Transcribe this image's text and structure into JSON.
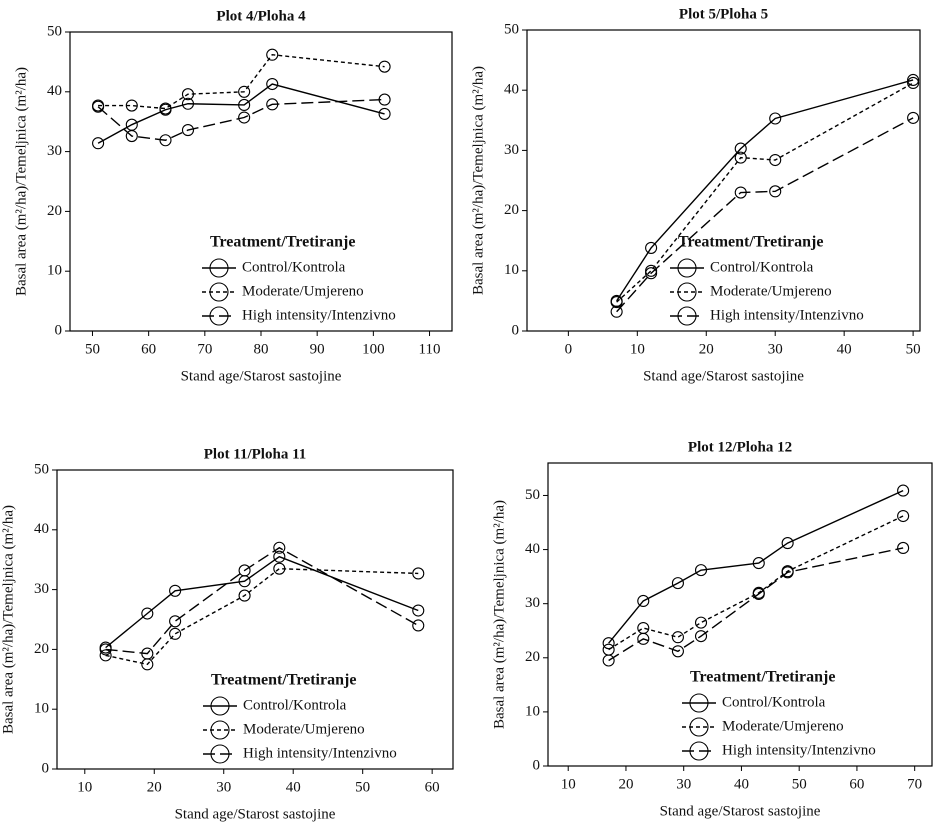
{
  "chart_data": [
    {
      "type": "line",
      "title": "Plot 4/Ploha 4",
      "xlabel": "Stand age/Starost sastojine",
      "ylabel": "Basal area (m²/ha)/Temeljnica (m²/ha)",
      "legend_title": "Treatment/Tretiranje",
      "legend": "lower right",
      "x": [
        51,
        57,
        63,
        67,
        77,
        82,
        102
      ],
      "xlim": [
        46,
        114
      ],
      "xticks": [
        50,
        60,
        70,
        80,
        90,
        100,
        110
      ],
      "ylim": [
        0,
        50
      ],
      "yticks": [
        0,
        10,
        20,
        30,
        40,
        50
      ],
      "series": [
        {
          "name": "Control/Kontrola",
          "color": "#000000",
          "linestyle": "solid",
          "values": [
            31.4,
            34.5,
            37,
            38,
            37.8,
            41.3,
            36.3
          ]
        },
        {
          "name": "Moderate/Umjereno",
          "color": "#000000",
          "linestyle": "dotted",
          "values": [
            37.7,
            37.7,
            37.2,
            39.6,
            40,
            46.2,
            44.2
          ]
        },
        {
          "name": "High intensity/Intenzivno",
          "color": "#000000",
          "linestyle": "dashed",
          "values": [
            37.5,
            32.6,
            31.9,
            33.6,
            35.7,
            37.9,
            38.7
          ]
        }
      ]
    },
    {
      "type": "line",
      "title": "Plot 5/Ploha 5",
      "xlabel": "Stand age/Starost sastojine",
      "ylabel": "Basal area (m²/ha)/Temeljnica (m²/ha)",
      "legend_title": "Treatment/Tretiranje",
      "legend": "lower right",
      "x": [
        7,
        12,
        25,
        30,
        50
      ],
      "xlim": [
        -6,
        51
      ],
      "xticks": [
        0,
        10,
        20,
        30,
        40,
        50
      ],
      "ylim": [
        0,
        50
      ],
      "yticks": [
        0,
        10,
        20,
        30,
        40,
        50
      ],
      "series": [
        {
          "name": "Control/Kontrola",
          "color": "#000000",
          "linestyle": "solid",
          "values": [
            5,
            13.8,
            30.3,
            35.3,
            41.7
          ]
        },
        {
          "name": "Moderate/Umjereno",
          "color": "#000000",
          "linestyle": "dotted",
          "values": [
            4.8,
            10,
            28.8,
            28.4,
            41.2
          ]
        },
        {
          "name": "High intensity/Intenzivno",
          "color": "#000000",
          "linestyle": "dashed",
          "values": [
            3.2,
            9.6,
            23,
            23.2,
            35.4
          ]
        }
      ]
    },
    {
      "type": "line",
      "title": "Plot 11/Ploha 11",
      "xlabel": "Stand age/Starost sastojine",
      "ylabel": "Basal area (m²/ha)/Temeljnica (m²/ha)",
      "legend_title": "Treatment/Tretiranje",
      "legend": "lower right",
      "x": [
        13,
        19,
        23,
        33,
        38,
        58
      ],
      "xlim": [
        6,
        63
      ],
      "xticks": [
        10,
        20,
        30,
        40,
        50,
        60
      ],
      "ylim": [
        0,
        50
      ],
      "yticks": [
        0,
        10,
        20,
        30,
        40,
        50
      ],
      "series": [
        {
          "name": "Control/Kontrola",
          "color": "#000000",
          "linestyle": "solid",
          "values": [
            20.3,
            26,
            29.8,
            31.4,
            35.5,
            26.5
          ]
        },
        {
          "name": "Moderate/Umjereno",
          "color": "#000000",
          "linestyle": "dotted",
          "values": [
            19,
            17.5,
            22.6,
            29,
            33.5,
            32.7
          ]
        },
        {
          "name": "High intensity/Intenzivno",
          "color": "#000000",
          "linestyle": "dashed",
          "values": [
            20,
            19.3,
            24.7,
            33.2,
            37,
            24
          ]
        }
      ]
    },
    {
      "type": "line",
      "title": "Plot 12/Ploha 12",
      "xlabel": "Stand age/Starost sastojine",
      "ylabel": "Basal area (m²/ha)/Temeljnica (m²/ha)",
      "legend_title": "Treatment/Tretiranje",
      "legend": "lower right",
      "x": [
        17,
        23,
        29,
        33,
        43,
        48,
        68
      ],
      "xlim": [
        6.5,
        73
      ],
      "xticks": [
        10,
        20,
        30,
        40,
        50,
        60,
        70
      ],
      "ylim": [
        0,
        56
      ],
      "yticks": [
        0,
        10,
        20,
        30,
        40,
        50
      ],
      "series": [
        {
          "name": "Control/Kontrola",
          "color": "#000000",
          "linestyle": "solid",
          "values": [
            22.7,
            30.5,
            33.8,
            36.2,
            37.5,
            41.2,
            50.9
          ]
        },
        {
          "name": "Moderate/Umjereno",
          "color": "#000000",
          "linestyle": "dotted",
          "values": [
            21.5,
            25.5,
            23.8,
            26.5,
            32,
            36,
            46.2
          ]
        },
        {
          "name": "High intensity/Intenzivno",
          "color": "#000000",
          "linestyle": "dashed",
          "values": [
            19.5,
            23.5,
            21.2,
            24,
            31.8,
            35.8,
            40.3
          ]
        }
      ]
    }
  ]
}
